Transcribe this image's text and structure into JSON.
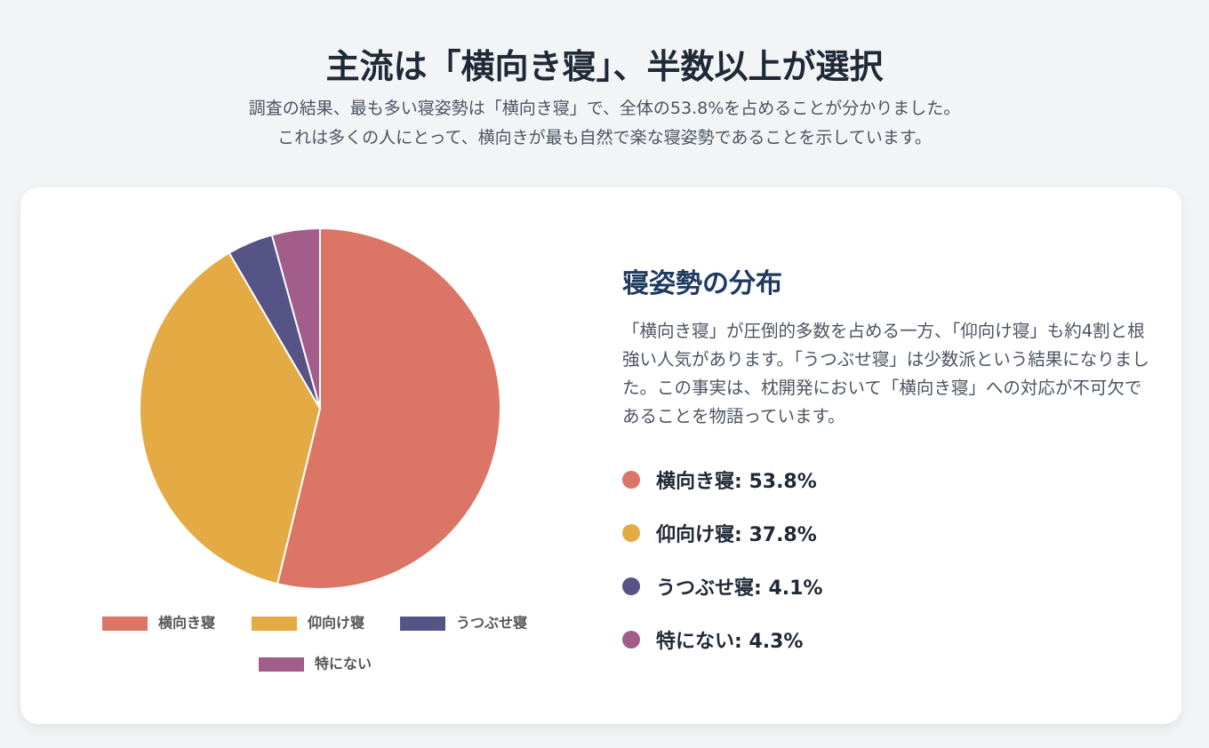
{
  "header": {
    "title": "主流は「横向き寝」、半数以上が選択",
    "subtitle": [
      "調査の結果、最も多い寝姿勢は「横向き寝」で、全体の53.8%を占めることが分かりました。",
      "これは多くの人にとって、横向きが最も自然で楽な寝姿勢であることを示しています。"
    ]
  },
  "chart_data": {
    "type": "pie",
    "categories": [
      "横向き寝",
      "仰向け寝",
      "うつぶせ寝",
      "特にない"
    ],
    "values": [
      53.8,
      37.8,
      4.1,
      4.3
    ],
    "colors": [
      "#db7566",
      "#e4ab45",
      "#565486",
      "#a25d8a"
    ],
    "legend": "bottom"
  },
  "panel": {
    "title": "寝姿勢の分布",
    "body": "「横向き寝」が圧倒的多数を占める一方、「仰向け寝」も約4割と根強い人気があります。「うつぶせ寝」は少数派という結果になりました。この事実は、枕開発において「横向き寝」への対応が不可欠であることを物語っています。",
    "items": [
      "横向き寝: 53.8%",
      "仰向け寝: 37.8%",
      "うつぶせ寝: 4.1%",
      "特にない: 4.3%"
    ]
  }
}
